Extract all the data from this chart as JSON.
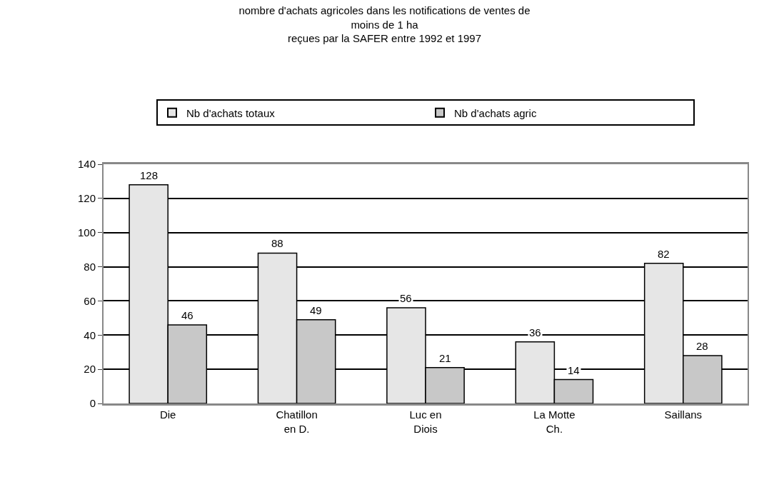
{
  "chart_data": {
    "type": "bar",
    "title": "nombre d'achats agricoles dans les notifications de ventes de\nmoins de 1 ha",
    "subtitle": "reçues par la SAFER entre 1992 et 1997",
    "categories": [
      "Die",
      "Chatillon\nen D.",
      "Luc en\nDiois",
      "La Motte\nCh.",
      "Saillans"
    ],
    "series": [
      {
        "name": "Nb d'achats totaux",
        "color": "#e6e6e6",
        "values": [
          128,
          88,
          56,
          36,
          82
        ]
      },
      {
        "name": "Nb d'achats agric",
        "color": "#c8c8c8",
        "values": [
          46,
          49,
          21,
          14,
          28
        ]
      }
    ],
    "ylim": [
      0,
      140
    ],
    "yticks": [
      0,
      20,
      40,
      60,
      80,
      100,
      120,
      140
    ],
    "grid": "y",
    "legend": "top",
    "data_labels": true
  }
}
